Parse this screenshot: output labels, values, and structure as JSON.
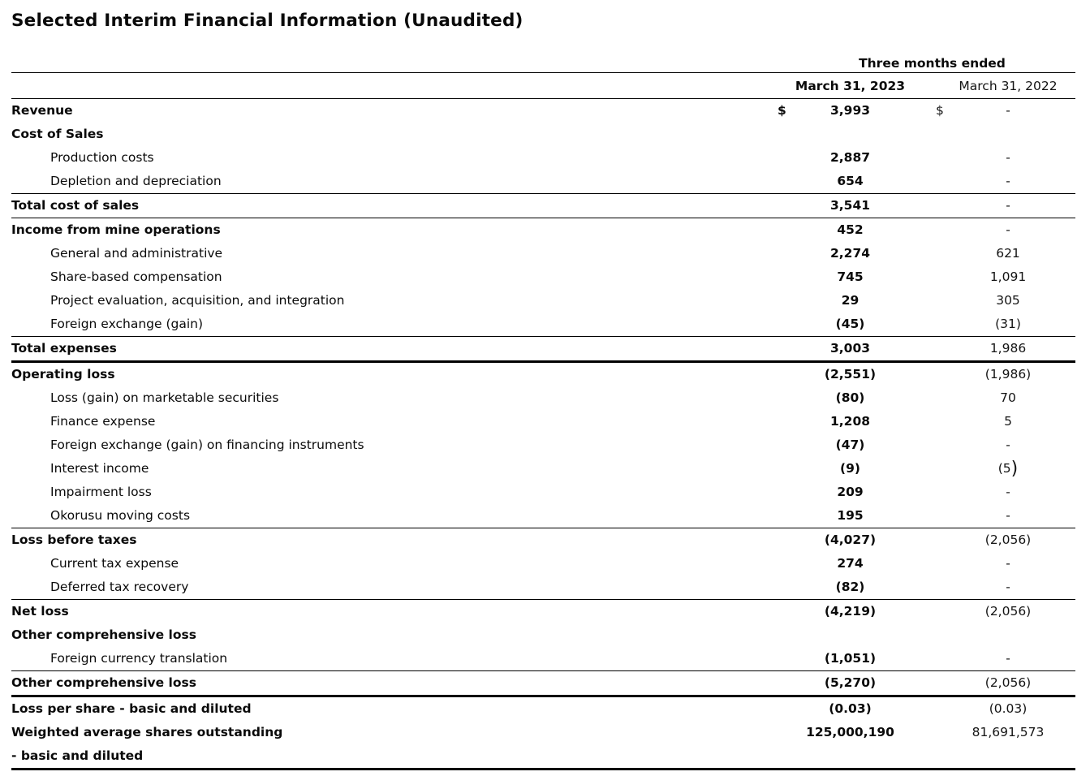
{
  "title": "Selected Interim Financial Information (Unaudited)",
  "table": {
    "period_header": "Three months ended",
    "columns": {
      "y2023": "March 31, 2023",
      "y2022": "March 31, 2022"
    },
    "rows": [
      {
        "label": "Revenue",
        "bold": true,
        "indent": false,
        "dollar2023": "$",
        "dollar2022": "$",
        "v2023": "3,993",
        "v2022": "-",
        "border": "none"
      },
      {
        "label": "Cost of Sales",
        "bold": true,
        "indent": false,
        "v2023": "",
        "v2022": "",
        "border": "none"
      },
      {
        "label": "Production costs",
        "bold": false,
        "indent": true,
        "v2023": "2,887",
        "v2022": "-",
        "border": "none"
      },
      {
        "label": "Depletion and depreciation",
        "bold": false,
        "indent": true,
        "v2023": "654",
        "v2022": "-",
        "border": "thin"
      },
      {
        "label": "Total cost of sales",
        "bold": true,
        "indent": false,
        "v2023": "3,541",
        "v2022": "-",
        "border": "thin"
      },
      {
        "label": "Income from mine operations",
        "bold": true,
        "indent": false,
        "v2023": "452",
        "v2022": "-",
        "border": "none"
      },
      {
        "label": "General and administrative",
        "bold": false,
        "indent": true,
        "v2023": "2,274",
        "v2022": "621",
        "border": "none"
      },
      {
        "label": "Share-based compensation",
        "bold": false,
        "indent": true,
        "v2023": "745",
        "v2022": "1,091",
        "border": "none"
      },
      {
        "label": "Project evaluation, acquisition, and integration",
        "bold": false,
        "indent": true,
        "v2023": "29",
        "v2022": "305",
        "border": "none"
      },
      {
        "label": "Foreign exchange (gain)",
        "bold": false,
        "indent": true,
        "v2023": "(45)",
        "v2022": "(31)",
        "border": "thin"
      },
      {
        "label": "Total expenses",
        "bold": true,
        "indent": false,
        "v2023": "3,003",
        "v2022": "1,986",
        "border": "thick"
      },
      {
        "label": "Operating loss",
        "bold": true,
        "indent": false,
        "v2023": "(2,551)",
        "v2022": "(1,986)",
        "border": "none"
      },
      {
        "label": "Loss (gain) on marketable securities",
        "bold": false,
        "indent": true,
        "v2023": "(80)",
        "v2022": "70",
        "border": "none"
      },
      {
        "label": "Finance expense",
        "bold": false,
        "indent": true,
        "v2023": "1,208",
        "v2022": "5",
        "border": "none"
      },
      {
        "label": "Foreign exchange (gain) on financing instruments",
        "bold": false,
        "indent": true,
        "v2023": "(47)",
        "v2022": "-",
        "border": "none"
      },
      {
        "label": "Interest income",
        "bold": false,
        "indent": true,
        "v2023": "(9)",
        "v2022": "(5)",
        "big_close_paren_2022": true,
        "border": "none"
      },
      {
        "label": "Impairment loss",
        "bold": false,
        "indent": true,
        "v2023": "209",
        "v2022": "-",
        "border": "none"
      },
      {
        "label": "Okorusu moving costs",
        "bold": false,
        "indent": true,
        "v2023": "195",
        "v2022": "-",
        "border": "thin"
      },
      {
        "label": "Loss before taxes",
        "bold": true,
        "indent": false,
        "v2023": "(4,027)",
        "v2022": "(2,056)",
        "border": "none"
      },
      {
        "label": "Current tax expense",
        "bold": false,
        "indent": true,
        "v2023": "274",
        "v2022": "-",
        "border": "none"
      },
      {
        "label": "Deferred tax recovery",
        "bold": false,
        "indent": true,
        "v2023": "(82)",
        "v2022": "-",
        "border": "thin"
      },
      {
        "label": "Net loss",
        "bold": true,
        "indent": false,
        "v2023": "(4,219)",
        "v2022": "(2,056)",
        "border": "none"
      },
      {
        "label": "Other comprehensive loss",
        "bold": true,
        "indent": false,
        "v2023": "",
        "v2022": "",
        "border": "none"
      },
      {
        "label": "Foreign currency translation",
        "bold": false,
        "indent": true,
        "v2023": "(1,051)",
        "v2022": "-",
        "border": "thin"
      },
      {
        "label": "Other comprehensive loss",
        "bold": true,
        "indent": false,
        "v2023": "(5,270)",
        "v2022": "(2,056)",
        "border": "thick"
      },
      {
        "label": "Loss per share - basic and diluted",
        "bold": true,
        "indent": false,
        "v2023": "(0.03)",
        "v2022": "(0.03)",
        "border": "none"
      },
      {
        "label": "Weighted average shares outstanding",
        "bold": true,
        "indent": false,
        "v2023": "125,000,190",
        "v2022": "81,691,573",
        "border": "none"
      },
      {
        "label": "- basic and diluted",
        "bold": true,
        "indent": false,
        "v2023": "",
        "v2022": "",
        "border": "thick"
      }
    ]
  }
}
